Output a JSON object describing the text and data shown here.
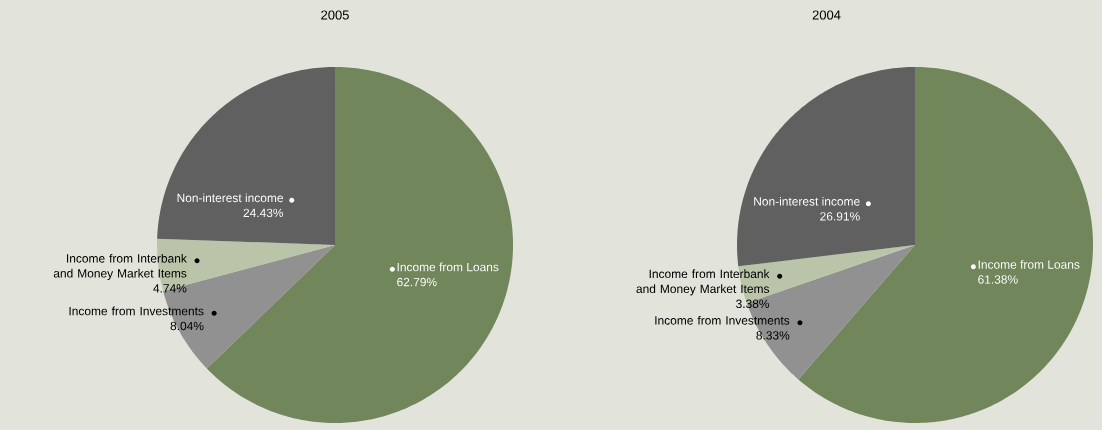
{
  "chart_data": [
    {
      "type": "pie",
      "title": "2005",
      "categories": [
        "Income from Loans",
        "Income from Investments",
        "Income from Interbank and Money Market Items",
        "Non-interest income"
      ],
      "values": [
        62.79,
        8.04,
        4.74,
        24.43
      ],
      "value_labels": [
        "62.79%",
        "8.04%",
        "4.74%",
        "24.43%"
      ],
      "colors": [
        "#71865a",
        "#919191",
        "#b9c4a8",
        "#606060"
      ]
    },
    {
      "type": "pie",
      "title": "2004",
      "categories": [
        "Income from Loans",
        "Income from Investments",
        "Income from Interbank and Money Market Items",
        "Non-interest income"
      ],
      "values": [
        61.38,
        8.33,
        3.38,
        26.91
      ],
      "value_labels": [
        "61.38%",
        "8.33%",
        "3.38%",
        "26.91%"
      ],
      "colors": [
        "#71865a",
        "#919191",
        "#b9c4a8",
        "#606060"
      ]
    }
  ]
}
